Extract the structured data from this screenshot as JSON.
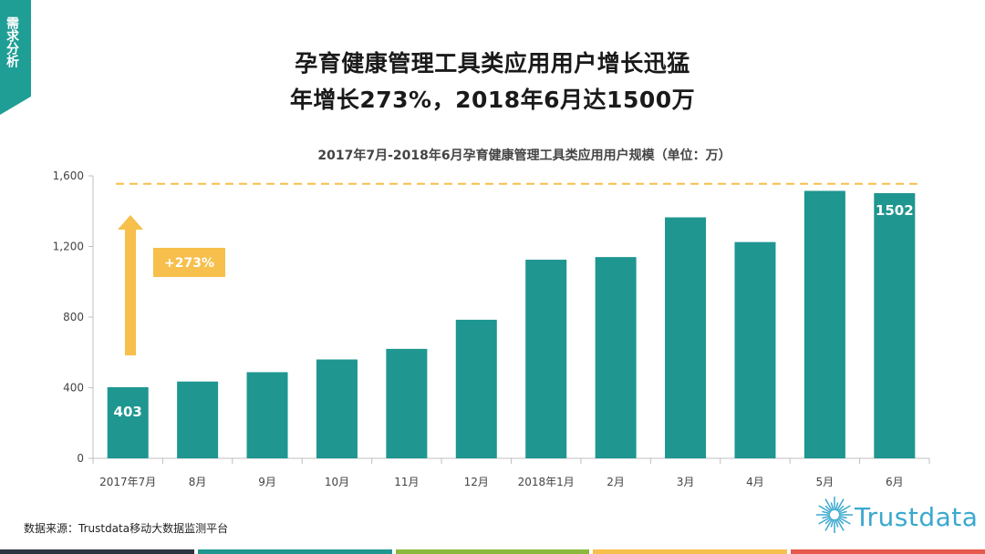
{
  "side_tag": "需求分析",
  "headline": {
    "line1": "孕育健康管理工具类应用用户增长迅猛",
    "line2": "年增长273%，2018年6月达1500万"
  },
  "chart_data": {
    "type": "bar",
    "title": "2017年7月-2018年6月孕育健康管理工具类应用用户规模（单位：万）",
    "categories": [
      "2017年7月",
      "8月",
      "9月",
      "10月",
      "11月",
      "12月",
      "2018年1月",
      "2月",
      "3月",
      "4月",
      "5月",
      "6月"
    ],
    "values": [
      403,
      435,
      488,
      560,
      620,
      785,
      1125,
      1140,
      1365,
      1225,
      1515,
      1502
    ],
    "data_labels": {
      "0": "403",
      "11": "1502"
    },
    "ylim": [
      0,
      1600
    ],
    "yticks": [
      0,
      400,
      800,
      1200,
      1600
    ],
    "ytick_labels": [
      "0",
      "400",
      "800",
      "1,200",
      "1,600"
    ],
    "reference_line": 1555,
    "growth_annotation": "+273%",
    "bar_color": "#1f9690",
    "arrow_color": "#f7bf4b"
  },
  "source": "数据来源：Trustdata移动大数据监测平台",
  "logo": {
    "name": "sunburst-logo-icon",
    "text": "Trustdata"
  },
  "bottom_bar_colors": [
    "#2b3540",
    "#1f9690",
    "#8cb83e",
    "#f7bf4b",
    "#e55a4c"
  ]
}
